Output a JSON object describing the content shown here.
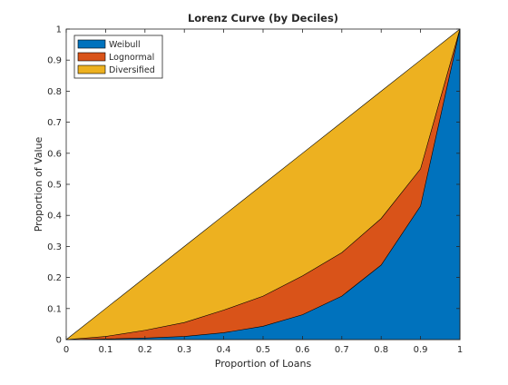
{
  "chart_data": {
    "type": "area",
    "title": "Lorenz Curve (by Deciles)",
    "xlabel": "Proportion of Loans",
    "ylabel": "Proportion of Value",
    "xlim": [
      0,
      1
    ],
    "ylim": [
      0,
      1
    ],
    "grid": false,
    "legend_position": "top-left",
    "x": [
      0,
      0.1,
      0.2,
      0.3,
      0.4,
      0.5,
      0.6,
      0.7,
      0.8,
      0.9,
      1.0
    ],
    "x_ticks": [
      "0",
      "0.1",
      "0.2",
      "0.3",
      "0.4",
      "0.5",
      "0.6",
      "0.7",
      "0.8",
      "0.9",
      "1"
    ],
    "y_ticks": [
      "0",
      "0.1",
      "0.2",
      "0.3",
      "0.4",
      "0.5",
      "0.6",
      "0.7",
      "0.8",
      "0.9",
      "1"
    ],
    "series": [
      {
        "name": "Weibull",
        "color": "#0072BD",
        "values": [
          0,
          0.002,
          0.005,
          0.01,
          0.022,
          0.043,
          0.08,
          0.14,
          0.24,
          0.43,
          1.0
        ]
      },
      {
        "name": "Lognormal",
        "color": "#D95319",
        "values": [
          0,
          0.01,
          0.03,
          0.055,
          0.095,
          0.14,
          0.205,
          0.28,
          0.39,
          0.55,
          1.0
        ]
      },
      {
        "name": "Diversified",
        "color": "#EDB120",
        "values": [
          0,
          0.1,
          0.2,
          0.3,
          0.4,
          0.5,
          0.6,
          0.7,
          0.8,
          0.9,
          1.0
        ]
      }
    ]
  }
}
